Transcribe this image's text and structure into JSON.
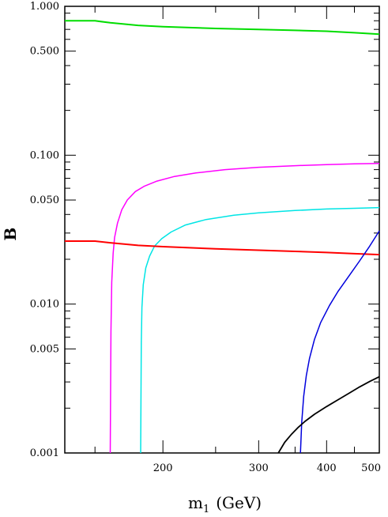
{
  "chart_data": {
    "type": "line",
    "xlabel": "m",
    "xlabel_sub": "1",
    "xlabel_unit": "(GeV)",
    "ylabel": "B",
    "xscale": "log",
    "yscale": "log",
    "xlim": [
      132,
      500
    ],
    "ylim": [
      0.001,
      1.0
    ],
    "grid": false,
    "x_ticks": [
      {
        "value": 200,
        "label": "200"
      },
      {
        "value": 300,
        "label": "300"
      },
      {
        "value": 400,
        "label": "400"
      },
      {
        "value": 500,
        "label": "500"
      }
    ],
    "y_ticks": [
      {
        "value": 0.001,
        "label": "0.001"
      },
      {
        "value": 0.005,
        "label": "0.005"
      },
      {
        "value": 0.01,
        "label": "0.010"
      },
      {
        "value": 0.05,
        "label": "0.050"
      },
      {
        "value": 0.1,
        "label": "0.100"
      },
      {
        "value": 0.5,
        "label": "0.500"
      },
      {
        "value": 1.0,
        "label": "1.000"
      }
    ],
    "series": [
      {
        "color": "#00dd00",
        "x": [
          132,
          150,
          160,
          180,
          200,
          250,
          300,
          350,
          400,
          450,
          500
        ],
        "y": [
          0.8,
          0.8,
          0.775,
          0.745,
          0.73,
          0.71,
          0.7,
          0.69,
          0.68,
          0.665,
          0.65
        ]
      },
      {
        "color": "#ff00ff",
        "x": [
          160,
          160.5,
          161,
          162,
          163,
          165,
          168,
          172,
          178,
          185,
          195,
          210,
          230,
          260,
          300,
          350,
          400,
          450,
          500
        ],
        "y": [
          0.001,
          0.0065,
          0.014,
          0.022,
          0.028,
          0.035,
          0.043,
          0.05,
          0.057,
          0.062,
          0.067,
          0.072,
          0.076,
          0.08,
          0.083,
          0.085,
          0.0865,
          0.0875,
          0.088
        ]
      },
      {
        "color": "#00e5e5",
        "x": [
          182,
          182.5,
          183,
          184,
          186,
          189,
          193,
          199,
          207,
          220,
          240,
          270,
          300,
          350,
          400,
          450,
          500
        ],
        "y": [
          0.001,
          0.0055,
          0.0095,
          0.0135,
          0.0175,
          0.021,
          0.0245,
          0.0275,
          0.0305,
          0.034,
          0.037,
          0.0395,
          0.041,
          0.0425,
          0.0435,
          0.044,
          0.0445
        ]
      },
      {
        "color": "#ff0000",
        "x": [
          132,
          150,
          160,
          180,
          200,
          250,
          300,
          350,
          400,
          450,
          500
        ],
        "y": [
          0.0265,
          0.0265,
          0.0258,
          0.0248,
          0.0243,
          0.0235,
          0.023,
          0.0226,
          0.0222,
          0.0218,
          0.0215
        ]
      },
      {
        "color": "#0000dd",
        "x": [
          358,
          360,
          363,
          367,
          372,
          380,
          390,
          405,
          420,
          440,
          460,
          480,
          500
        ],
        "y": [
          0.001,
          0.0016,
          0.0024,
          0.0033,
          0.0043,
          0.0058,
          0.0075,
          0.0098,
          0.0122,
          0.0155,
          0.0195,
          0.0245,
          0.031
        ]
      },
      {
        "color": "#000000",
        "x": [
          326,
          335,
          345,
          355,
          365,
          380,
          400,
          420,
          440,
          460,
          480,
          500
        ],
        "y": [
          0.001,
          0.00118,
          0.00134,
          0.00149,
          0.00163,
          0.00182,
          0.00205,
          0.00228,
          0.00252,
          0.00278,
          0.00302,
          0.00325
        ]
      }
    ]
  }
}
